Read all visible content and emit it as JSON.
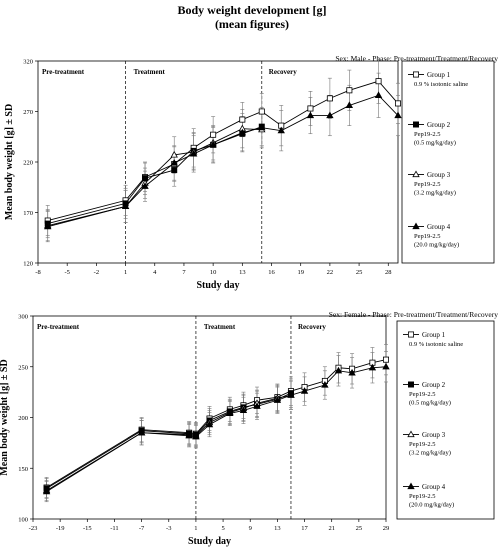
{
  "page": {
    "title": "Body weight development [g]",
    "subtitle": "(mean figures)"
  },
  "chart_data": [
    {
      "type": "line",
      "header": "Sex: Male - Phase: Pre-treatment/Treatment/Recovery",
      "xlabel": "Study day",
      "ylabel": "Mean body weight [g] ± SD",
      "xlim": [
        -8,
        29
      ],
      "ylim": [
        120,
        320
      ],
      "xticks": [
        -8,
        -5,
        -2,
        1,
        4,
        7,
        10,
        13,
        16,
        19,
        22,
        25,
        28
      ],
      "yticks": [
        120,
        170,
        220,
        270,
        320
      ],
      "phase_lines": [
        1,
        15
      ],
      "phases": [
        "Pre-treatment",
        "Treatment",
        "Recovery"
      ],
      "grid": false,
      "legend": "right",
      "series": [
        {
          "name": "Group 1",
          "desc": [
            "0.9 % isotonic saline"
          ],
          "marker": "square-open",
          "x": [
            -7,
            1,
            3,
            6,
            8,
            10,
            13,
            15,
            17,
            20,
            22,
            24,
            27,
            29
          ],
          "y": [
            162,
            182,
            205,
            218,
            234,
            247,
            262,
            270,
            256,
            273,
            283,
            291,
            300,
            278
          ],
          "sd": [
            15,
            15,
            14,
            17,
            19,
            18,
            17,
            18,
            20,
            17,
            20,
            20,
            22,
            20
          ]
        },
        {
          "name": "Group 2",
          "desc": [
            "Pep19-2.5",
            "(0.5 mg/kg/day)"
          ],
          "marker": "square-filled",
          "x": [
            -7,
            1,
            3,
            6,
            8,
            10,
            13,
            15
          ],
          "y": [
            159,
            179,
            204,
            212,
            231,
            237,
            248,
            255
          ],
          "sd": [
            14,
            15,
            16,
            16,
            18,
            18,
            17,
            19
          ]
        },
        {
          "name": "Group 3",
          "desc": [
            "Pep19-2.5",
            "(3.2 mg/kg/day)"
          ],
          "marker": "triangle-open",
          "x": [
            -7,
            1,
            3,
            6,
            8,
            10,
            13,
            15
          ],
          "y": [
            157,
            176,
            199,
            227,
            230,
            239,
            253,
            252
          ],
          "sd": [
            15,
            16,
            15,
            18,
            18,
            17,
            19,
            18
          ]
        },
        {
          "name": "Group 4",
          "desc": [
            "Pep19-2.5",
            "(20.0 mg/kg/day)"
          ],
          "marker": "triangle-filled",
          "x": [
            -7,
            1,
            3,
            6,
            8,
            10,
            13,
            15,
            17,
            20,
            22,
            24,
            27,
            29
          ],
          "y": [
            156,
            176,
            196,
            219,
            228,
            237,
            249,
            254,
            251,
            266,
            266,
            276,
            286,
            266
          ],
          "sd": [
            15,
            16,
            15,
            17,
            18,
            17,
            19,
            18,
            20,
            18,
            20,
            20,
            22,
            20
          ]
        }
      ]
    },
    {
      "type": "line",
      "header": "Sex: Female - Phase: Pre-treatment/Treatment/Recovery",
      "xlabel": "Study day",
      "ylabel": "Mean body weight [g] ± SD",
      "xlim": [
        -23,
        29
      ],
      "ylim": [
        100,
        300
      ],
      "xticks": [
        -23,
        -19,
        -15,
        -11,
        -7,
        -3,
        1,
        5,
        9,
        13,
        17,
        21,
        25,
        29
      ],
      "yticks": [
        100,
        150,
        200,
        250,
        300
      ],
      "phase_lines": [
        1,
        15
      ],
      "phases": [
        "Pre-treatment",
        "Treatment",
        "Recovery"
      ],
      "grid": false,
      "legend": "right",
      "series": [
        {
          "name": "Group 1",
          "desc": [
            "0.9 % isotonic saline"
          ],
          "marker": "square-open",
          "x": [
            -21,
            -7,
            0,
            1,
            3,
            6,
            8,
            10,
            13,
            15,
            17,
            20,
            22,
            24,
            27,
            29
          ],
          "y": [
            131,
            188,
            185,
            184,
            199,
            208,
            212,
            217,
            220,
            226,
            230,
            236,
            249,
            248,
            254,
            257
          ],
          "sd": [
            10,
            12,
            11,
            11,
            12,
            12,
            13,
            13,
            13,
            14,
            14,
            14,
            15,
            15,
            15,
            15
          ]
        },
        {
          "name": "Group 2",
          "desc": [
            "Pep19-2.5",
            "(0.5 mg/kg/day)"
          ],
          "marker": "square-filled",
          "x": [
            -21,
            -7,
            0,
            1,
            3,
            6,
            8,
            10,
            13,
            15
          ],
          "y": [
            130,
            187,
            184,
            183,
            197,
            206,
            210,
            213,
            218,
            224
          ],
          "sd": [
            10,
            12,
            11,
            11,
            12,
            12,
            13,
            13,
            13,
            14
          ]
        },
        {
          "name": "Group 3",
          "desc": [
            "Pep19-2.5",
            "(3.2 mg/kg/day)"
          ],
          "marker": "triangle-open",
          "x": [
            -21,
            -7,
            0,
            1,
            3,
            6,
            8,
            10,
            13,
            15
          ],
          "y": [
            128,
            185,
            183,
            182,
            195,
            205,
            209,
            214,
            219,
            222
          ],
          "sd": [
            10,
            12,
            11,
            11,
            12,
            12,
            13,
            13,
            13,
            14
          ]
        },
        {
          "name": "Group 4",
          "desc": [
            "Pep19-2.5",
            "(20.0 mg/kg/day)"
          ],
          "marker": "triangle-filled",
          "x": [
            -21,
            -7,
            0,
            1,
            3,
            6,
            8,
            10,
            13,
            15,
            17,
            20,
            22,
            24,
            27,
            29
          ],
          "y": [
            127,
            185,
            182,
            181,
            193,
            204,
            207,
            211,
            217,
            222,
            226,
            232,
            246,
            244,
            249,
            250
          ],
          "sd": [
            10,
            12,
            11,
            11,
            12,
            12,
            13,
            13,
            13,
            14,
            14,
            14,
            15,
            15,
            15,
            15
          ]
        }
      ]
    }
  ]
}
